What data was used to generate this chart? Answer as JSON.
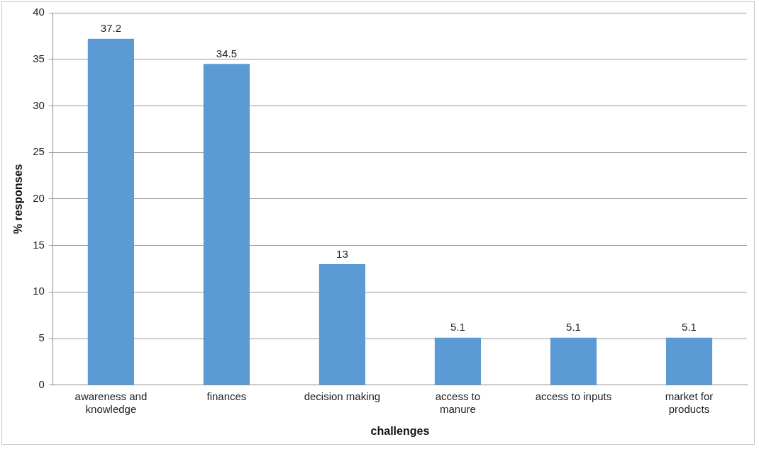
{
  "chart_data": {
    "type": "bar",
    "xlabel": "challenges",
    "ylabel": "% responses",
    "categories": [
      "awareness and knowledge",
      "finances",
      "decision making",
      "access to manure",
      "access to inputs",
      "market for products"
    ],
    "values": [
      37.2,
      34.5,
      13,
      5.1,
      5.1,
      5.1
    ],
    "color": "#5b9bd5",
    "ylim": [
      0,
      40
    ],
    "yticks": [
      0,
      5,
      10,
      15,
      20,
      25,
      30,
      35,
      40
    ],
    "grid": "y",
    "data_labels": true,
    "legend": false
  }
}
